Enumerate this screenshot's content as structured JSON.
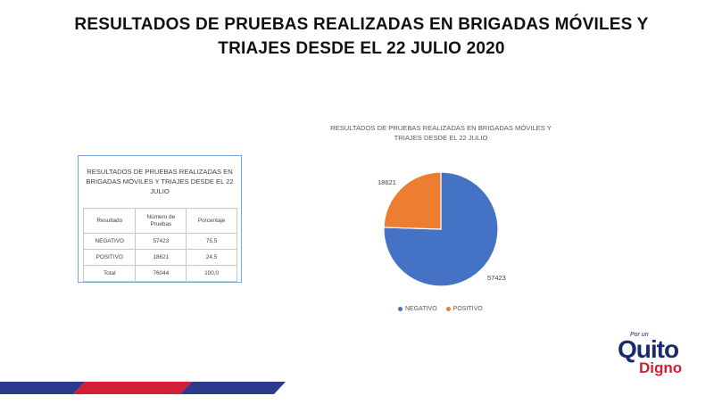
{
  "slide": {
    "title_line1": "RESULTADOS DE PRUEBAS REALIZADAS EN BRIGADAS MÓVILES Y",
    "title_line2": "TRIAJES DESDE EL 22 JULIO 2020"
  },
  "table": {
    "caption_line1": "RESULTADOS  DE PRUEBAS REALIZADAS  EN",
    "caption_line2": "BRIGADAS  MÓVILES Y TRIAJES DESDE EL 22",
    "caption_line3": "JULIO",
    "headers": {
      "resultado": "Resultado",
      "numero_line1": "Número de",
      "numero_line2": "Pruebas",
      "porcentaje": "Porcentaje"
    },
    "rows": [
      {
        "resultado": "NEGATIVO",
        "numero": "57423",
        "porcentaje": "75,5"
      },
      {
        "resultado": "POSITIVO",
        "numero": "18621",
        "porcentaje": "24,5"
      },
      {
        "resultado": "Total",
        "numero": "76044",
        "porcentaje": "100,0"
      }
    ]
  },
  "chart_data": {
    "type": "pie",
    "title_line1": "RESULTADOS  DE PRUEBAS  REALIZADAS  EN BRIGADAS  MÓVILES Y",
    "title_line2": "TRIAJES  DESDE EL 22 JULIO",
    "categories": [
      "NEGATIVO",
      "POSITIVO"
    ],
    "values": [
      57423,
      18621
    ],
    "data_labels": [
      "57423",
      "18621"
    ],
    "colors": [
      "#4472c4",
      "#ed7d31"
    ],
    "legend_position": "bottom"
  },
  "logo": {
    "por_un": "Por un",
    "quito": "Quito",
    "digno": "Digno"
  },
  "colors": {
    "stripe_blue": "#2b3a8c",
    "stripe_red": "#d21f36"
  }
}
